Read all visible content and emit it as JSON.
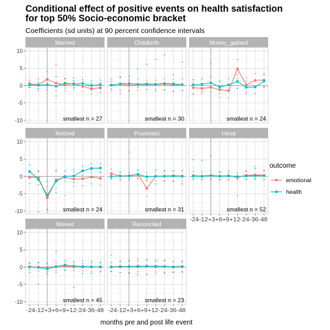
{
  "chart_data": {
    "type": "line",
    "title_lines": [
      "Conditional effect of positive events on health satisfaction",
      "for top 50% Socio-economic bracket"
    ],
    "subtitle": "Coefficients (sd units) at 90 percent confidence intervals",
    "xlabel": "months pre and post life event",
    "ylabel": "",
    "x_tick_labels": [
      "-24",
      "-12",
      "+3",
      "+6",
      "+9",
      "+12",
      "-24",
      "-36",
      "-48"
    ],
    "y_ticks": [
      -10,
      -5,
      0,
      5,
      10
    ],
    "ylim": [
      -10.8,
      11
    ],
    "reference_x_index": 2,
    "legend": {
      "title": "outcome",
      "position": "right",
      "entries": [
        {
          "label": "emotional",
          "color": "#F8766D"
        },
        {
          "label": "health",
          "color": "#00BFC4"
        }
      ]
    },
    "series_colors": {
      "emotional": "#F8766D",
      "health": "#00BFC4"
    },
    "panels": [
      {
        "name": "Married",
        "note": "smallest n = 27",
        "series": [
          {
            "name": "emotional",
            "values": [
              0.5,
              0.3,
              1.8,
              0.7,
              0.2,
              0.6,
              -0.2,
              -0.9,
              -0.6
            ]
          },
          {
            "name": "health",
            "values": [
              0.2,
              0.1,
              0.3,
              -0.2,
              0.7,
              0.4,
              0.6,
              0.0,
              0.3
            ]
          }
        ],
        "intervals": [
          {
            "name": "emotional",
            "low": [
              -0.6,
              -1.4,
              -0.5,
              -1.5,
              -1.5,
              -1.0,
              -1.6,
              -2.3,
              -2.0
            ],
            "high": [
              1.6,
              2.0,
              4.1,
              6.0,
              1.9,
              2.2,
              1.2,
              0.5,
              0.8
            ]
          },
          {
            "name": "health",
            "low": [
              -0.5,
              -0.8,
              -1.2,
              -3.0,
              -0.7,
              -0.6,
              -0.5,
              -1.3,
              -1.0
            ],
            "high": [
              0.9,
              1.0,
              1.8,
              2.6,
              2.1,
              1.4,
              1.7,
              1.3,
              1.6
            ]
          }
        ]
      },
      {
        "name": "Childbirth",
        "note": "smallest n = 30",
        "series": [
          {
            "name": "emotional",
            "values": [
              0.2,
              0.4,
              0.1,
              0.3,
              0.2,
              0.3,
              0.4,
              0.2,
              0.3
            ]
          },
          {
            "name": "health",
            "values": [
              0.1,
              0.5,
              0.6,
              0.4,
              0.5,
              0.4,
              0.6,
              0.5,
              0.3
            ]
          }
        ],
        "intervals": [
          {
            "name": "emotional",
            "low": [
              -1.5,
              -2.2,
              -1.4,
              -1.3,
              -1.2,
              -1.0,
              -1.2,
              -1.5,
              -1.4
            ],
            "high": [
              1.9,
              2.6,
              1.6,
              1.9,
              1.6,
              1.6,
              2.0,
              1.9,
              2.0
            ]
          },
          {
            "name": "health",
            "low": [
              -1.0,
              -1.3,
              -1.5,
              -0.5,
              -1.1,
              -1.5,
              -1.3,
              -1.8,
              -1.4
            ],
            "high": [
              1.2,
              2.3,
              2.7,
              4.8,
              6.2,
              7.6,
              8.8,
              3.1,
              6.8
            ]
          }
        ]
      },
      {
        "name": "Money_gained",
        "note": "smallest n = 24",
        "series": [
          {
            "name": "emotional",
            "values": [
              -0.6,
              -0.8,
              -0.5,
              -1.2,
              -1.5,
              4.8,
              0.2,
              1.5,
              1.6
            ]
          },
          {
            "name": "health",
            "values": [
              0.3,
              0.4,
              0.8,
              -0.4,
              0.2,
              1.2,
              -0.5,
              -0.4,
              1.3
            ]
          }
        ],
        "intervals": [
          {
            "name": "emotional",
            "low": [
              -2.5,
              -2.2,
              -2.0,
              -3.4,
              -3.5,
              2.1,
              -1.8,
              -0.4,
              -0.3
            ],
            "high": [
              1.3,
              0.6,
              6.5,
              1.0,
              0.5,
              7.5,
              2.2,
              3.4,
              3.5
            ]
          },
          {
            "name": "health",
            "low": [
              -2.4,
              -1.6,
              -0.8,
              -2.2,
              -1.6,
              -0.8,
              -2.3,
              -2.3,
              -0.5
            ],
            "high": [
              1.8,
              2.0,
              2.4,
              1.4,
              2.0,
              3.2,
              1.3,
              1.5,
              3.1
            ]
          }
        ]
      },
      {
        "name": "Retired",
        "note": "smallest n = 24",
        "series": [
          {
            "name": "emotional",
            "values": [
              -0.3,
              -0.3,
              -6.2,
              -1.0,
              -0.3,
              -0.8,
              -0.7,
              -0.2,
              -0.6
            ]
          },
          {
            "name": "health",
            "values": [
              1.4,
              -0.9,
              -5.4,
              -1.4,
              0.0,
              0.1,
              1.6,
              2.3,
              2.4
            ]
          }
        ],
        "intervals": [
          {
            "name": "emotional",
            "low": [
              -2.0,
              -2.4,
              -9.5,
              -3.5,
              -5.5,
              -2.9,
              -2.7,
              -2.1,
              -2.5
            ],
            "high": [
              1.4,
              1.6,
              -3.0,
              1.4,
              1.5,
              1.3,
              1.3,
              1.7,
              1.3
            ]
          },
          {
            "name": "health",
            "low": [
              -0.5,
              -10.2,
              -9.6,
              -4.6,
              -1.5,
              -1.8,
              0.3,
              1.0,
              1.1
            ],
            "high": [
              3.3,
              1.4,
              -1.4,
              1.8,
              1.5,
              2.0,
              2.9,
              3.6,
              3.7
            ]
          }
        ]
      },
      {
        "name": "Promoted",
        "note": "smallest n = 31",
        "series": [
          {
            "name": "emotional",
            "values": [
              0.8,
              0.1,
              0.2,
              0.6,
              -3.5,
              0.1,
              0.1,
              0.2,
              0.1
            ]
          },
          {
            "name": "health",
            "values": [
              0.0,
              0.1,
              0.1,
              0.5,
              -0.1,
              0.0,
              0.0,
              0.1,
              0.0
            ]
          }
        ],
        "intervals": [
          {
            "name": "emotional",
            "low": [
              -0.5,
              -1.2,
              -1.0,
              -0.5,
              -5.8,
              -1.2,
              -1.1,
              -1.2,
              -1.3
            ],
            "high": [
              2.1,
              1.4,
              7.0,
              1.9,
              -1.0,
              1.4,
              1.4,
              1.6,
              1.6
            ]
          },
          {
            "name": "health",
            "low": [
              -0.8,
              -0.8,
              -0.9,
              -0.8,
              -1.3,
              -2.2,
              -1.4,
              -1.4,
              -2.2
            ],
            "high": [
              0.8,
              1.0,
              1.1,
              1.8,
              1.1,
              2.0,
              1.6,
              1.5,
              1.6
            ]
          }
        ]
      },
      {
        "name": "Hired",
        "note": "smallest n = 52",
        "series": [
          {
            "name": "emotional",
            "values": [
              0.2,
              0.1,
              0.3,
              0.1,
              0.2,
              -0.3,
              0.3,
              0.4,
              0.3
            ]
          },
          {
            "name": "health",
            "values": [
              0.1,
              0.0,
              0.2,
              0.0,
              0.1,
              0.0,
              0.1,
              0.2,
              0.2
            ]
          }
        ],
        "intervals": [
          {
            "name": "emotional",
            "low": [
              -1.0,
              -1.0,
              -0.9,
              -1.1,
              -1.2,
              -5.5,
              -1.0,
              -0.9,
              -1.1
            ],
            "high": [
              1.4,
              1.3,
              1.6,
              1.4,
              1.6,
              1.0,
              1.7,
              2.8,
              1.8
            ]
          },
          {
            "name": "health",
            "low": [
              -0.6,
              -0.8,
              -0.7,
              -0.9,
              -0.8,
              -0.8,
              -0.8,
              -0.6,
              -0.7
            ],
            "high": [
              4.8,
              4.6,
              6.0,
              1.2,
              1.2,
              1.0,
              1.4,
              2.2,
              1.5
            ]
          }
        ]
      },
      {
        "name": "Moved",
        "note": "smallest n = 45",
        "series": [
          {
            "name": "emotional",
            "values": [
              0.1,
              0.0,
              -0.1,
              0.2,
              0.3,
              0.1,
              0.0,
              0.0,
              0.1
            ]
          },
          {
            "name": "health",
            "values": [
              0.0,
              -0.1,
              -0.5,
              0.1,
              0.6,
              0.3,
              0.2,
              0.1,
              0.0
            ]
          }
        ],
        "intervals": [
          {
            "name": "emotional",
            "low": [
              -0.8,
              -1.2,
              -1.4,
              -0.9,
              -0.8,
              -0.9,
              -1.1,
              -1.3,
              -1.1
            ],
            "high": [
              1.0,
              1.2,
              1.2,
              1.2,
              1.4,
              1.1,
              1.0,
              1.1,
              1.2
            ]
          },
          {
            "name": "health",
            "low": [
              -1.5,
              -4.9,
              -2.0,
              -1.5,
              -1.0,
              -5.8,
              -1.8,
              -1.8,
              -1.4
            ],
            "high": [
              1.3,
              1.4,
              0.9,
              4.6,
              2.0,
              1.6,
              1.8,
              1.6,
              1.4
            ]
          }
        ]
      },
      {
        "name": "Reconciled",
        "note": "smallest n = 23",
        "series": [
          {
            "name": "emotional",
            "values": [
              0.1,
              0.2,
              0.1,
              0.3,
              0.2,
              0.3,
              0.2,
              0.1,
              0.2
            ]
          },
          {
            "name": "health",
            "values": [
              0.0,
              0.1,
              0.2,
              0.1,
              0.3,
              0.1,
              0.2,
              0.0,
              0.1
            ]
          }
        ],
        "intervals": [
          {
            "name": "emotional",
            "low": [
              -1.4,
              -1.6,
              -1.6,
              -2.2,
              -2.3,
              -1.9,
              -1.8,
              -1.6,
              -1.5
            ],
            "high": [
              3.4,
              1.8,
              1.7,
              2.4,
              2.3,
              2.1,
              2.0,
              1.8,
              1.8
            ]
          },
          {
            "name": "health",
            "low": [
              -1.2,
              -1.6,
              -1.8,
              -1.4,
              -1.9,
              -1.4,
              -1.5,
              -1.4,
              -1.3
            ],
            "high": [
              1.3,
              1.5,
              1.9,
              1.7,
              2.0,
              1.6,
              1.8,
              1.4,
              1.5
            ]
          }
        ]
      }
    ]
  }
}
